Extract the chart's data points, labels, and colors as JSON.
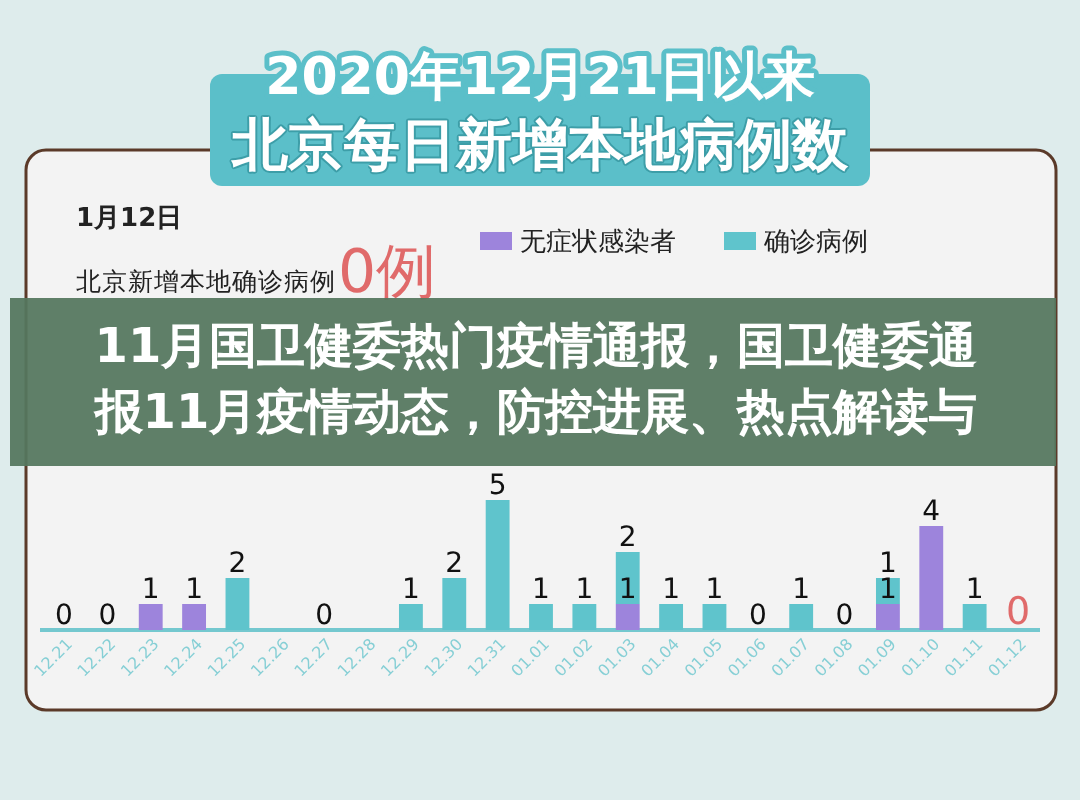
{
  "chart_data": {
    "type": "bar",
    "title": "2020年12月21日以来",
    "subtitle": "北京每日新增本地病例数",
    "categories": [
      "12.21",
      "12.22",
      "12.23",
      "12.24",
      "12.25",
      "12.26",
      "12.27",
      "12.28",
      "12.29",
      "12.30",
      "12.31",
      "01.01",
      "01.02",
      "01.03",
      "01.04",
      "01.05",
      "01.06",
      "01.07",
      "01.08",
      "01.09",
      "01.10",
      "01.11",
      "01.12"
    ],
    "series": [
      {
        "name": "无症状感染者",
        "color": "#9d84dc",
        "values": [
          0,
          0,
          1,
          1,
          0,
          0,
          0,
          0,
          0,
          0,
          0,
          0,
          0,
          1,
          0,
          0,
          0,
          0,
          0,
          1,
          4,
          0,
          0
        ],
        "value_labels": [
          null,
          null,
          "1",
          "1",
          null,
          null,
          null,
          null,
          null,
          null,
          null,
          null,
          null,
          "1",
          null,
          null,
          null,
          null,
          null,
          "1",
          "4",
          null,
          null
        ]
      },
      {
        "name": "确诊病例",
        "color": "#5fc4cc",
        "values": [
          0,
          0,
          0,
          0,
          2,
          null,
          0,
          null,
          1,
          2,
          5,
          1,
          1,
          2,
          1,
          1,
          0,
          1,
          0,
          1,
          0,
          1,
          0
        ],
        "value_labels": [
          "0",
          "0",
          null,
          null,
          "2",
          null,
          "0",
          null,
          "1",
          "2",
          "5",
          "1",
          "1",
          "2",
          "1",
          "1",
          "0",
          "1",
          "0",
          "1",
          null,
          "1",
          "0"
        ]
      }
    ],
    "stacked": true,
    "legend": "top",
    "tick_labels": "x",
    "annotations": [
      "1月12日",
      "北京新增本地确诊病例",
      "0例",
      "11月国卫健委热门疫情通报，国卫健委通报11月疫情动态，防控进展、热点解读与"
    ]
  }
}
